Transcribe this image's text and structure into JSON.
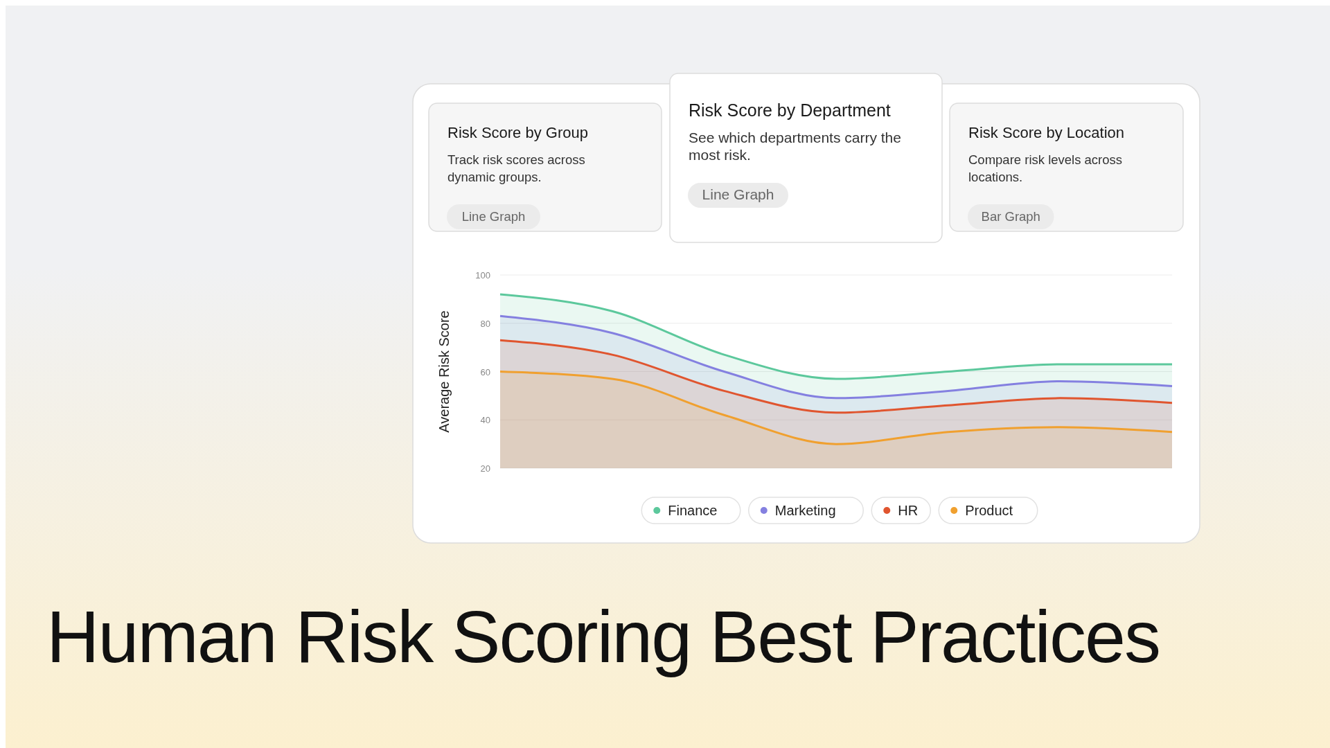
{
  "chart_data": [
    {
      "type": "other",
      "title": "Risk Score by Group",
      "subtitle": "Track risk scores across dynamic groups.",
      "annotations": [
        "Line Graph"
      ]
    },
    {
      "type": "other",
      "title": "Risk Score by Department",
      "subtitle": "See which departments carry the most risk.",
      "annotations": [
        "Line Graph"
      ]
    },
    {
      "type": "other",
      "title": "Risk Score by Location",
      "subtitle": "Compare risk levels across locations.",
      "annotations": [
        "Bar Graph"
      ]
    },
    {
      "type": "area",
      "title": "Human Risk Scoring Best Practices",
      "ylabel": "Average Risk Score",
      "categories": [
        null,
        null,
        null,
        null,
        null,
        null,
        null
      ],
      "series": [
        {
          "name": "Finance",
          "color": "#5cc89c",
          "values": [
            92,
            85,
            67,
            57,
            60,
            63,
            63
          ]
        },
        {
          "name": "Marketing",
          "color": "#8480e0",
          "values": [
            83,
            76,
            60,
            49,
            52,
            56,
            54
          ]
        },
        {
          "name": "HR",
          "color": "#e0552f",
          "values": [
            73,
            67,
            52,
            43,
            46,
            49,
            47
          ]
        },
        {
          "name": "Product",
          "color": "#f0a02f",
          "values": [
            60,
            57,
            42,
            30,
            35,
            37,
            35
          ]
        }
      ],
      "ylim": [
        20,
        100
      ],
      "yticks": [
        20,
        40,
        60,
        80,
        100
      ],
      "grid": "y",
      "legend": "bottom"
    }
  ]
}
